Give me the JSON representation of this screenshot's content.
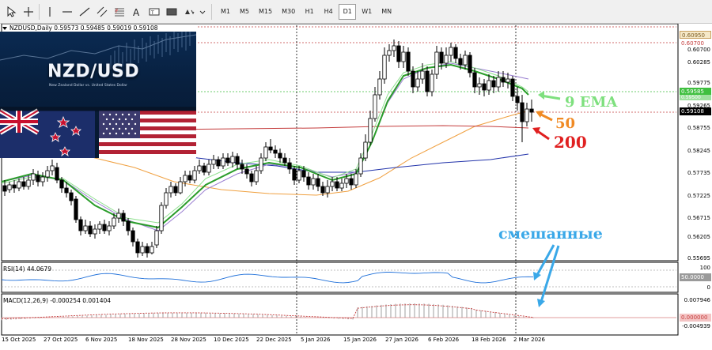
{
  "toolbar": {
    "tools": [
      "cursor-icon",
      "crosshair-icon",
      "vertical-line-icon",
      "horizontal-line-icon",
      "trendline-icon",
      "channel-icon",
      "fibonacci-icon",
      "text-icon",
      "label-icon",
      "rectangle-icon",
      "shapes-icon"
    ],
    "timeframes": [
      "M1",
      "M5",
      "M15",
      "M30",
      "H1",
      "H4",
      "D1",
      "W1",
      "MN"
    ],
    "active_timeframe": "D1"
  },
  "chart": {
    "symbol_line": "NZDUSD,Daily  0.59573 0.59485 0.59019 0.59108",
    "banner_title": "NZD/USD",
    "banner_subtitle": "New Zealand Dollar vs. United States Dollar",
    "price_axis": [
      "0.60955",
      "0.60700",
      "0.60285",
      "0.59775",
      "0.59265",
      "0.58755",
      "0.58245",
      "0.57735",
      "0.57225",
      "0.56715",
      "0.56205",
      "0.55695"
    ],
    "price_tags": {
      "top_line": "0.60950",
      "upper_line": "0.60700",
      "ema_tag_a": "0.59585",
      "ema_tag_b": "0.59500",
      "current_price": "0.59108"
    },
    "dates": [
      "15 Oct 2025",
      "27 Oct 2025",
      "6 Nov 2025",
      "18 Nov 2025",
      "28 Nov 2025",
      "10 Dec 2025",
      "22 Dec 2025",
      "5 Jan 2026",
      "15 Jan 2026",
      "27 Jan 2026",
      "6 Feb 2026",
      "18 Feb 2026",
      "2 Mar 2026"
    ],
    "annotations": {
      "ema": "9 EMA",
      "ma50": "50",
      "ma200": "200",
      "mixed": "смешанные"
    },
    "colors": {
      "ema9": "#2a9d2a",
      "ema_light": "#90e090",
      "ma_purple": "#9a7fd1",
      "ma50": "#f0a040",
      "ma200": "#c43c3c",
      "blue_ma": "#2233aa",
      "annot_green": "#7ee07e",
      "annot_orange": "#f08a24",
      "annot_red": "#e02020",
      "annot_blue": "#3aa8e8"
    }
  },
  "rsi": {
    "label": "RSI(14) 44.0679",
    "axis": [
      "100",
      "50.0000",
      "0"
    ]
  },
  "macd": {
    "label": "MACD(12,26,9) -0.000254 0.001404",
    "axis": [
      "0.007946",
      "0.000000",
      "-0.004939"
    ]
  }
}
